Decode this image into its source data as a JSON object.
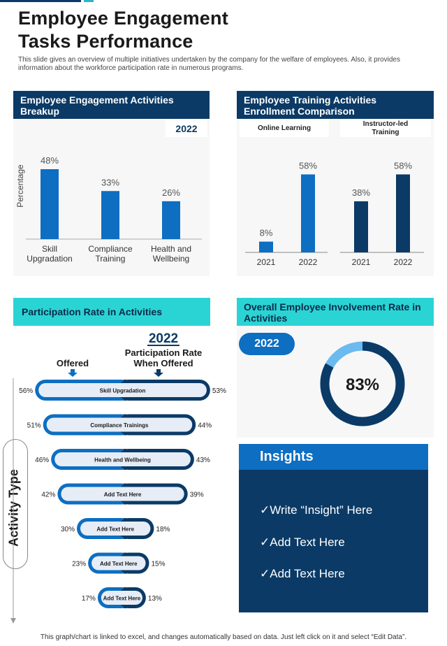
{
  "page": {
    "title_line1": "Employee Engagement",
    "title_line2": "Tasks Performance",
    "subtitle": "This slide gives an overview of multiple initiatives undertaken by the company for the welfare of employees. Also, it provides information about the workforce participation rate in numerous programs.",
    "footer": "This graph/chart is linked to excel, and changes automatically based on data. Just left click on it and select “Edit Data”."
  },
  "colors": {
    "navy": "#0b3a66",
    "blue": "#0d6ec2",
    "cyan": "#2bd4d4",
    "light_blue": "#6bbaf0",
    "pill_fill": "#e6edf6"
  },
  "panels": {
    "breakup_title": "Employee Engagement Activities Breakup",
    "training_title": "Employee Training Activities Enrollment Comparison",
    "participation_title": "Participation Rate in Activities",
    "involvement_title": "Overall Employee Involvement Rate in Activities"
  },
  "insights": {
    "title": "Insights",
    "items": [
      "✓Write “Insight” Here",
      "✓Add Text Here",
      "✓Add Text Here"
    ]
  },
  "participation_labels": {
    "year": "2022",
    "offered": "Offered",
    "rate_line1": "Participation Rate",
    "rate_line2": "When Offered",
    "axis_label": "Activity Type"
  },
  "involvement": {
    "year": "2022",
    "value": 83,
    "value_label": "83%"
  },
  "chart_data": [
    {
      "type": "bar",
      "year_label": "2022",
      "ylabel": "Percentage",
      "categories": [
        [
          "Skill",
          "Upgradation"
        ],
        [
          "Compliance",
          "Training"
        ],
        [
          "Health and",
          "Wellbeing"
        ]
      ],
      "values": [
        48,
        33,
        26
      ],
      "value_labels": [
        "48%",
        "33%",
        "26%"
      ],
      "ylim": [
        0,
        60
      ]
    },
    {
      "type": "bar",
      "groups": [
        {
          "name": "Online Learning",
          "categories": [
            "2021",
            "2022"
          ],
          "values": [
            8,
            58
          ],
          "value_labels": [
            "8%",
            "58%"
          ]
        },
        {
          "name": "Instructor-led Training",
          "name_lines": [
            "Instructor-led",
            "Training"
          ],
          "categories": [
            "2021",
            "2022"
          ],
          "values": [
            38,
            58
          ],
          "value_labels": [
            "38%",
            "58%"
          ]
        }
      ],
      "ylim": [
        0,
        65
      ]
    },
    {
      "type": "bar",
      "orientation": "horizontal",
      "categories": [
        "Skill Upgradation",
        "Compliance Trainings",
        "Health and Wellbeing",
        "Add Text Here",
        "Add Text Here",
        "Add Text Here",
        "Add Text Here"
      ],
      "series": [
        {
          "name": "Offered",
          "values": [
            56,
            51,
            46,
            42,
            30,
            23,
            17
          ],
          "value_labels": [
            "56%",
            "51%",
            "46%",
            "42%",
            "30%",
            "23%",
            "17%"
          ]
        },
        {
          "name": "Participation Rate When Offered",
          "values": [
            53,
            44,
            43,
            39,
            18,
            15,
            13
          ],
          "value_labels": [
            "53%",
            "44%",
            "43%",
            "39%",
            "18%",
            "15%",
            "13%"
          ]
        }
      ]
    },
    {
      "type": "pie",
      "donut": true,
      "values": [
        83,
        17
      ],
      "center_label": "83%"
    }
  ]
}
